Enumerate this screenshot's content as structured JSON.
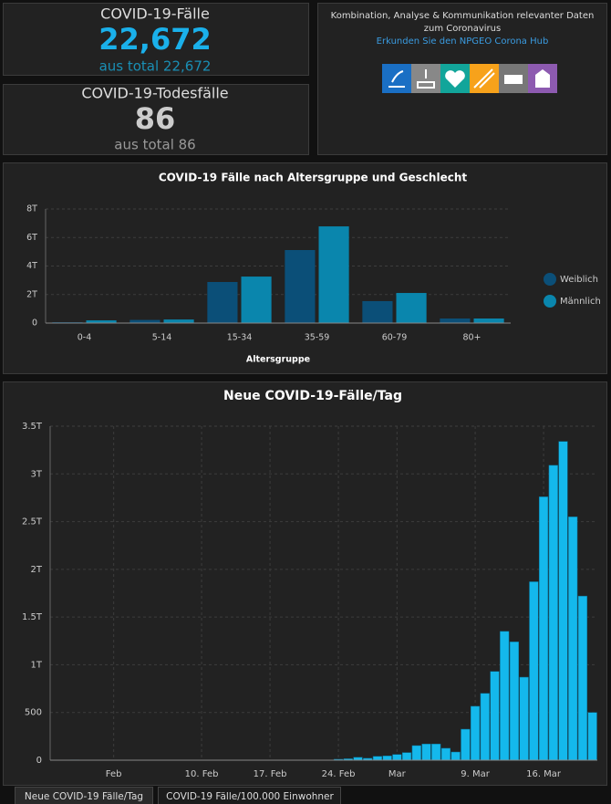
{
  "indicators": [
    {
      "title": "COVID-19-Fälle",
      "value": "22,672",
      "total": "aus total 22,672"
    },
    {
      "title": "COVID-19-Todesfälle",
      "value": "86",
      "total": "aus total 86"
    }
  ],
  "info": {
    "text": "Kombination, Analyse & Kommunikation relevanter Daten zum Coronavirus",
    "link": "Erkunden Sie den NPGEO Corona Hub"
  },
  "charts": [
    {
      "type": "bar",
      "title": "COVID-19 Fälle nach Altersgruppe und Geschlecht",
      "x_label": "Altersgruppe",
      "categories": [
        "0-4",
        "5-14",
        "15-34",
        "35-59",
        "60-79",
        "80+"
      ],
      "series": [
        {
          "name": "Weiblich",
          "color": "#0b4f78",
          "values": [
            60,
            220,
            2880,
            5120,
            1540,
            320
          ]
        },
        {
          "name": "Männlich",
          "color": "#0a86ad",
          "values": [
            190,
            250,
            3260,
            6780,
            2110,
            320
          ]
        }
      ],
      "ylim": [
        0,
        8000
      ],
      "yticks": [
        0,
        {
          "value": 2000,
          "label": "2T"
        },
        {
          "value": 4000,
          "label": "4T"
        },
        {
          "value": 6000,
          "label": "6T"
        },
        {
          "value": 8000,
          "label": "8T"
        }
      ],
      "grid": true,
      "legend": "right"
    },
    {
      "type": "bar",
      "title": "Neue COVID-19-Fälle/Tag",
      "categories": [
        null,
        null,
        null,
        null,
        null,
        null,
        "Feb",
        null,
        null,
        null,
        null,
        null,
        null,
        null,
        null,
        "10. Feb",
        null,
        null,
        null,
        null,
        null,
        null,
        "17. Feb",
        null,
        null,
        null,
        null,
        null,
        null,
        "24. Feb",
        null,
        null,
        null,
        null,
        null,
        "Mar",
        null,
        null,
        null,
        null,
        null,
        null,
        null,
        "9. Mar",
        null,
        null,
        null,
        null,
        null,
        null,
        "16. Mar",
        null,
        null,
        null,
        null,
        null
      ],
      "values": [
        0,
        1,
        3,
        0,
        0,
        1,
        0,
        1,
        2,
        0,
        0,
        0,
        0,
        0,
        2,
        0,
        0,
        0,
        0,
        0,
        0,
        0,
        0,
        0,
        0,
        0,
        0,
        0,
        0,
        10,
        15,
        30,
        20,
        40,
        45,
        60,
        80,
        153,
        170,
        170,
        125,
        86,
        325,
        565,
        700,
        930,
        1350,
        1240,
        870,
        1870,
        2760,
        3090,
        3340,
        2550,
        1720,
        500
      ],
      "color": "#14b8ec",
      "ylim": [
        0,
        3500
      ],
      "yticks": [
        0,
        500,
        {
          "value": 1000,
          "label": "1T"
        },
        {
          "value": 1500,
          "label": "1.5T"
        },
        {
          "value": 2000,
          "label": "2T"
        },
        {
          "value": 2500,
          "label": "2.5T"
        },
        {
          "value": 3000,
          "label": "3T"
        },
        {
          "value": 3500,
          "label": "3.5T"
        }
      ],
      "grid": true
    }
  ],
  "tabs": [
    "Neue COVID-19 Fälle/Tag",
    "COVID-19 Fälle/100.000 Einwohner"
  ]
}
